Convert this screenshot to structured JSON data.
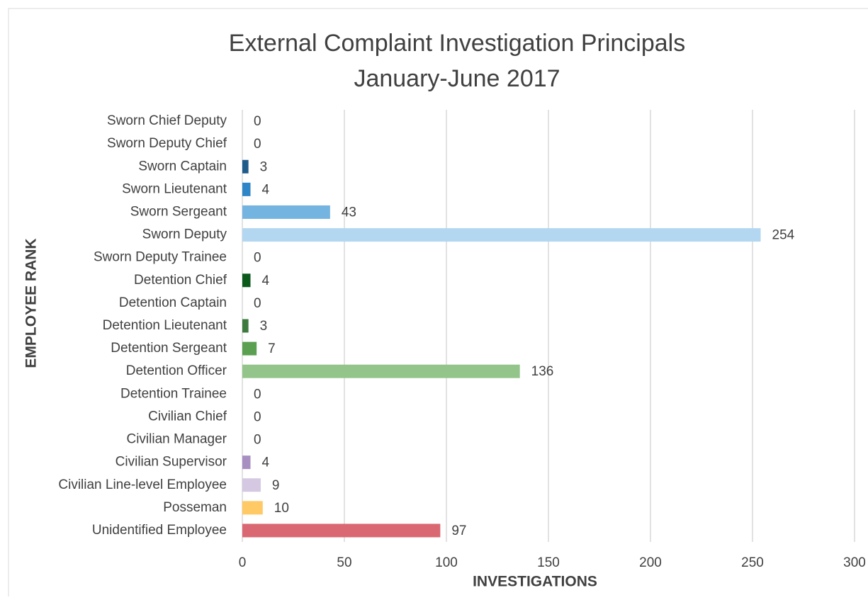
{
  "chart_data": {
    "type": "bar",
    "orientation": "horizontal",
    "title": "External Complaint Investigation Principals",
    "subtitle": "January-June 2017",
    "xlabel": "INVESTIGATIONS",
    "ylabel": "EMPLOYEE RANK",
    "categories": [
      "Sworn Chief Deputy",
      "Sworn Deputy Chief",
      "Sworn Captain",
      "Sworn Lieutenant",
      "Sworn Sergeant",
      "Sworn Deputy",
      "Sworn Deputy Trainee",
      "Detention Chief",
      "Detention Captain",
      "Detention Lieutenant",
      "Detention Sergeant",
      "Detention Officer",
      "Detention Trainee",
      "Civilian Chief",
      "Civilian Manager",
      "Civilian Supervisor",
      "Civilian Line-level Employee",
      "Posseman",
      "Unidentified Employee"
    ],
    "values": [
      0,
      0,
      3,
      4,
      43,
      254,
      0,
      4,
      0,
      3,
      7,
      136,
      0,
      0,
      0,
      4,
      9,
      10,
      97
    ],
    "colors": [
      "#17375e",
      "#1a4a73",
      "#1f5c8a",
      "#2e86c8",
      "#74b4e0",
      "#b3d7f0",
      "#d0e6f5",
      "#0b5a1c",
      "#245e2a",
      "#3d7a3d",
      "#5aa050",
      "#93c58a",
      "#c3e0bc",
      "#5b3f86",
      "#7e62a6",
      "#a78fc2",
      "#d4c8e2",
      "#ffc966",
      "#d96872"
    ],
    "xlim": [
      0,
      300
    ],
    "xticks": [
      0,
      50,
      100,
      150,
      200,
      250,
      300
    ],
    "grid": true
  }
}
